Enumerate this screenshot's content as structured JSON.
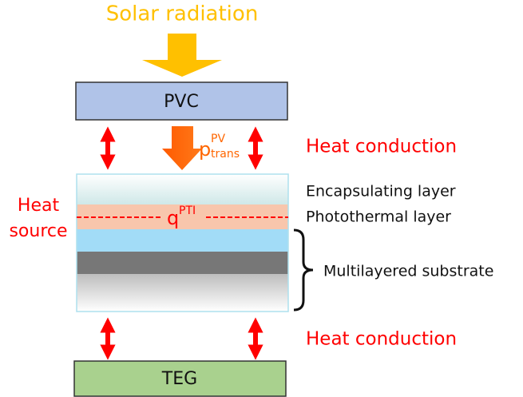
{
  "title": "Solar radiation",
  "pvc": {
    "label": "PVC"
  },
  "transmitted": {
    "base": "p",
    "sup": "PV",
    "sub": "trans"
  },
  "heat_conduction_top": "Heat conduction",
  "heat_conduction_bottom": "Heat conduction",
  "heat_source": {
    "line1": "Heat",
    "line2": "source"
  },
  "absorbed": {
    "base": "q",
    "sup": "PTI"
  },
  "layers": {
    "encapsulating": "Encapsulating layer",
    "photothermal": "Photothermal layer",
    "substrate": "Multilayered substrate"
  },
  "teg": {
    "label": "TEG"
  }
}
